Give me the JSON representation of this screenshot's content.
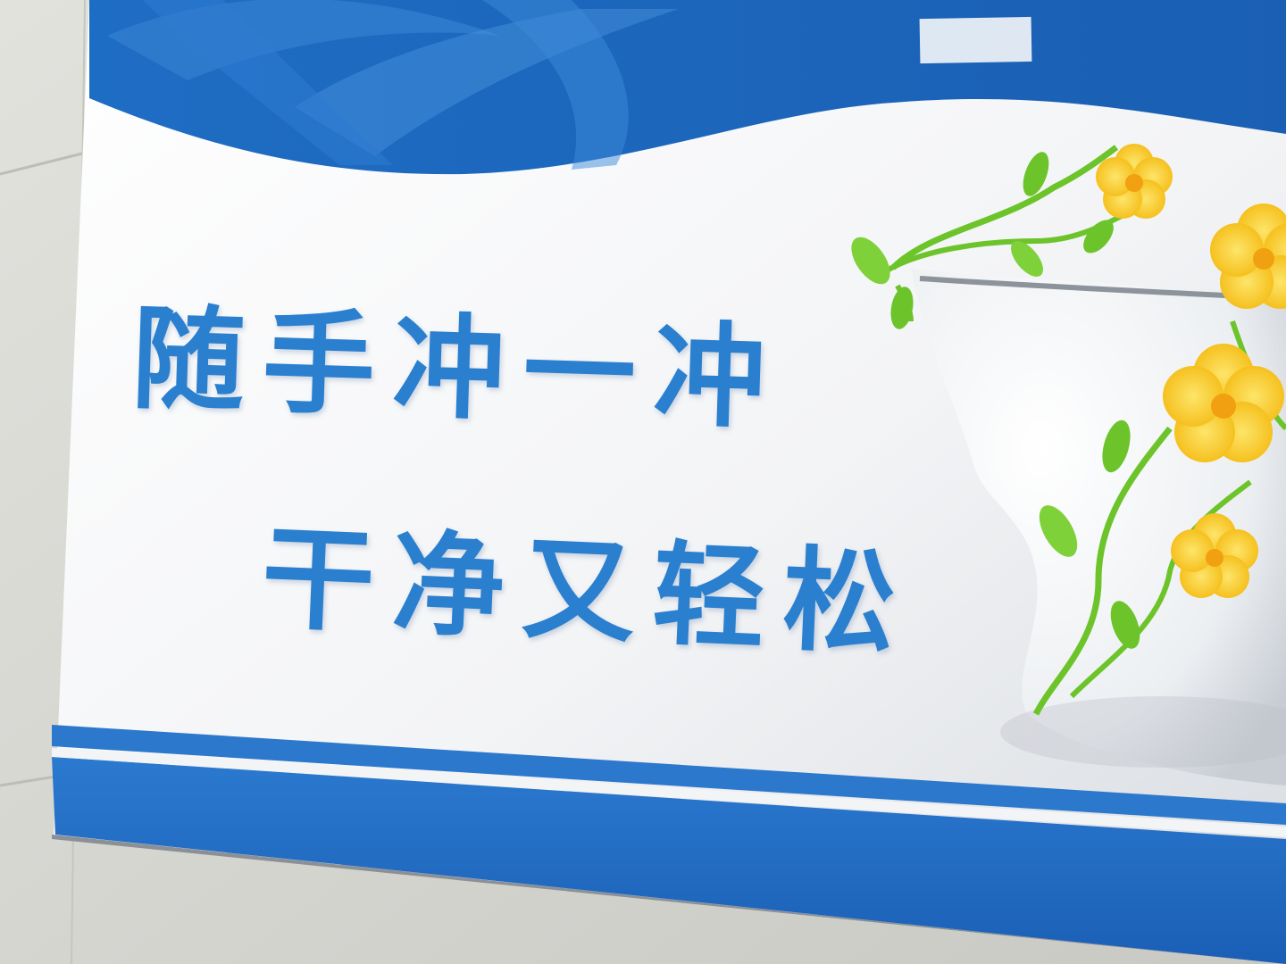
{
  "sign": {
    "line1": "随手冲一冲",
    "line2": "干净又轻松"
  },
  "colors": {
    "primary_blue": "#1f6fc8",
    "text_blue": "#2a7fcf",
    "flower_yellow": "#f7c51c",
    "vine_green": "#6cc42a",
    "wall": "#dcdcd8"
  },
  "icons": [
    "toilet-illustration",
    "flower-vine-decoration"
  ]
}
